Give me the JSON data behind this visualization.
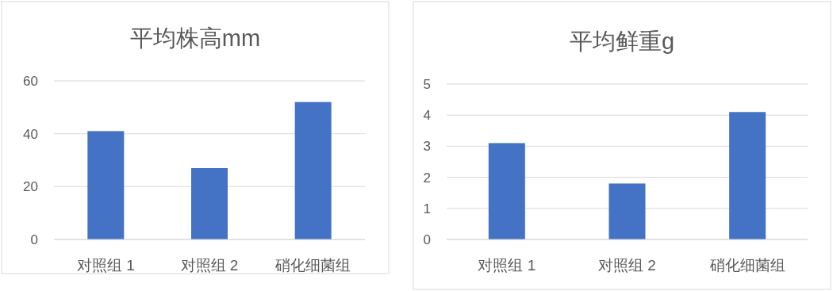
{
  "chart_data": [
    {
      "type": "bar",
      "title": "平均株高mm",
      "categories": [
        "对照组 1",
        "对照组 2",
        "硝化细菌组"
      ],
      "values": [
        41,
        27,
        52
      ],
      "color": "#4472c4",
      "ylim": [
        0,
        60
      ],
      "yticks": [
        0,
        20,
        40,
        60
      ],
      "grid": "y"
    },
    {
      "type": "bar",
      "title": "平均鲜重g",
      "categories": [
        "对照组 1",
        "对照组 2",
        "硝化细菌组"
      ],
      "values": [
        3.1,
        1.8,
        4.1
      ],
      "color": "#4472c4",
      "ylim": [
        0,
        5
      ],
      "yticks": [
        0,
        1,
        2,
        3,
        4,
        5
      ],
      "grid": "y"
    }
  ]
}
